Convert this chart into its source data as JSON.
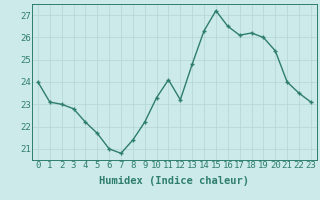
{
  "x": [
    0,
    1,
    2,
    3,
    4,
    5,
    6,
    7,
    8,
    9,
    10,
    11,
    12,
    13,
    14,
    15,
    16,
    17,
    18,
    19,
    20,
    21,
    22,
    23
  ],
  "y": [
    24.0,
    23.1,
    23.0,
    22.8,
    22.2,
    21.7,
    21.0,
    20.8,
    21.4,
    22.2,
    23.3,
    24.1,
    23.2,
    24.8,
    26.3,
    27.2,
    26.5,
    26.1,
    26.2,
    26.0,
    25.4,
    24.0,
    23.5,
    23.1
  ],
  "line_color": "#2e7d6e",
  "marker": "+",
  "marker_size": 3,
  "bg_color": "#cceaea",
  "grid_color": "#b8d8d8",
  "xlabel": "Humidex (Indice chaleur)",
  "ylim": [
    20.5,
    27.5
  ],
  "yticks": [
    21,
    22,
    23,
    24,
    25,
    26,
    27
  ],
  "xticks": [
    0,
    1,
    2,
    3,
    4,
    5,
    6,
    7,
    8,
    9,
    10,
    11,
    12,
    13,
    14,
    15,
    16,
    17,
    18,
    19,
    20,
    21,
    22,
    23
  ],
  "tick_label_fontsize": 6.5,
  "xlabel_fontsize": 7.5,
  "line_width": 1.0
}
